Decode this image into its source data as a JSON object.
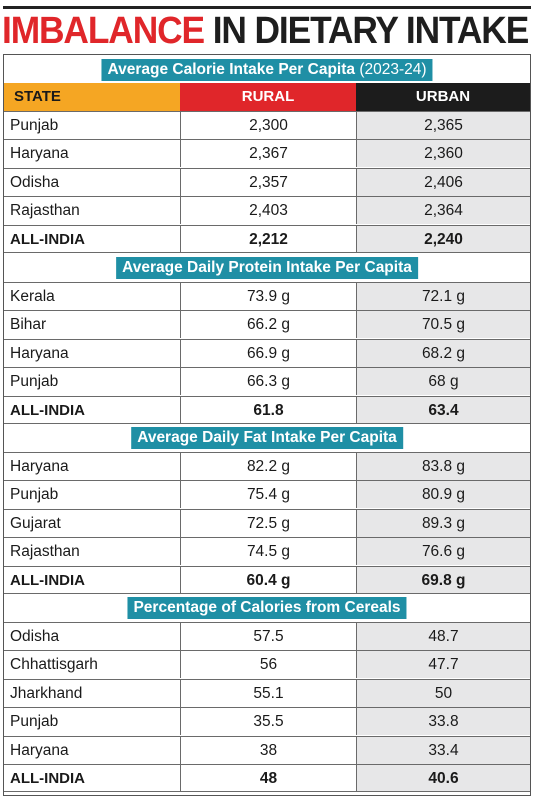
{
  "title": {
    "part1": "IMBALANCE",
    "part2": "IN DIETARY INTAKE"
  },
  "header": {
    "state": "STATE",
    "rural": "RURAL",
    "urban": "URBAN"
  },
  "sections": [
    {
      "title": "Average Calorie Intake Per Capita",
      "title_suffix": "(2023-24)",
      "rows": [
        {
          "state": "Punjab",
          "rural": "2,300",
          "urban": "2,365"
        },
        {
          "state": "Haryana",
          "rural": "2,367",
          "urban": "2,360"
        },
        {
          "state": "Odisha",
          "rural": "2,357",
          "urban": "2,406"
        },
        {
          "state": "Rajasthan",
          "rural": "2,403",
          "urban": "2,364"
        },
        {
          "state": "ALL-INDIA",
          "rural": "2,212",
          "urban": "2,240",
          "total": true
        }
      ]
    },
    {
      "title": "Average Daily Protein Intake Per Capita",
      "title_suffix": "",
      "rows": [
        {
          "state": "Kerala",
          "rural": "73.9 g",
          "urban": "72.1 g"
        },
        {
          "state": "Bihar",
          "rural": "66.2 g",
          "urban": "70.5 g"
        },
        {
          "state": "Haryana",
          "rural": "66.9 g",
          "urban": "68.2 g"
        },
        {
          "state": "Punjab",
          "rural": "66.3 g",
          "urban": "68 g"
        },
        {
          "state": "ALL-INDIA",
          "rural": "61.8",
          "urban": "63.4",
          "total": true
        }
      ]
    },
    {
      "title": "Average Daily Fat Intake Per Capita",
      "title_suffix": "",
      "rows": [
        {
          "state": "Haryana",
          "rural": "82.2 g",
          "urban": "83.8 g"
        },
        {
          "state": "Punjab",
          "rural": "75.4 g",
          "urban": "80.9 g"
        },
        {
          "state": "Gujarat",
          "rural": "72.5 g",
          "urban": "89.3 g"
        },
        {
          "state": "Rajasthan",
          "rural": "74.5 g",
          "urban": "76.6 g"
        },
        {
          "state": "ALL-INDIA",
          "rural": "60.4 g",
          "urban": "69.8 g",
          "total": true
        }
      ]
    },
    {
      "title": "Percentage of Calories from Cereals",
      "title_suffix": "",
      "rows": [
        {
          "state": "Odisha",
          "rural": "57.5",
          "urban": "48.7"
        },
        {
          "state": "Chhattisgarh",
          "rural": "56",
          "urban": "47.7"
        },
        {
          "state": "Jharkhand",
          "rural": "55.1",
          "urban": "50"
        },
        {
          "state": "Punjab",
          "rural": "35.5",
          "urban": "33.8"
        },
        {
          "state": "Haryana",
          "rural": "38",
          "urban": "33.4"
        },
        {
          "state": "ALL-INDIA",
          "rural": "48",
          "urban": "40.6",
          "total": true
        }
      ]
    }
  ],
  "colors": {
    "title_red": "#e0262a",
    "section_teal": "#1f8fa5",
    "state_header": "#f5a623",
    "rural_header": "#e0262a",
    "urban_header": "#1c1c1c",
    "urban_cell": "#e7e7e8"
  }
}
